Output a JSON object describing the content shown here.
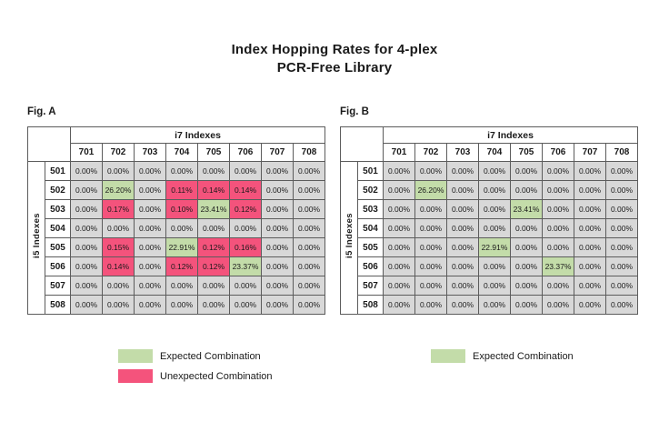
{
  "title": {
    "line1": "Index Hopping Rates for 4-plex",
    "line2": "PCR-Free Library"
  },
  "colors": {
    "expected": "#C3DCA9",
    "unexpected": "#F4537C",
    "neutral": "#D8D8D8",
    "header_bg": "#FFFFFF",
    "border": "#5C5C5C",
    "text": "#1A1A1A"
  },
  "chart_data": [
    {
      "type": "heatmap",
      "title": "Fig. A",
      "x_axis_header": "i7 Indexes",
      "y_axis_header": "i5 Indexes",
      "x_labels": [
        "701",
        "702",
        "703",
        "704",
        "705",
        "706",
        "707",
        "708"
      ],
      "y_labels": [
        "501",
        "502",
        "503",
        "504",
        "505",
        "506",
        "507",
        "508"
      ],
      "values": [
        [
          "0.00%",
          "0.00%",
          "0.00%",
          "0.00%",
          "0.00%",
          "0.00%",
          "0.00%",
          "0.00%"
        ],
        [
          "0.00%",
          "26.20%",
          "0.00%",
          "0.11%",
          "0.14%",
          "0.14%",
          "0.00%",
          "0.00%"
        ],
        [
          "0.00%",
          "0.17%",
          "0.00%",
          "0.10%",
          "23.41%",
          "0.12%",
          "0.00%",
          "0.00%"
        ],
        [
          "0.00%",
          "0.00%",
          "0.00%",
          "0.00%",
          "0.00%",
          "0.00%",
          "0.00%",
          "0.00%"
        ],
        [
          "0.00%",
          "0.15%",
          "0.00%",
          "22.91%",
          "0.12%",
          "0.16%",
          "0.00%",
          "0.00%"
        ],
        [
          "0.00%",
          "0.14%",
          "0.00%",
          "0.12%",
          "0.12%",
          "23.37%",
          "0.00%",
          "0.00%"
        ],
        [
          "0.00%",
          "0.00%",
          "0.00%",
          "0.00%",
          "0.00%",
          "0.00%",
          "0.00%",
          "0.00%"
        ],
        [
          "0.00%",
          "0.00%",
          "0.00%",
          "0.00%",
          "0.00%",
          "0.00%",
          "0.00%",
          "0.00%"
        ]
      ],
      "highlights": [
        [
          "-",
          "-",
          "-",
          "-",
          "-",
          "-",
          "-",
          "-"
        ],
        [
          "-",
          "E",
          "-",
          "U",
          "U",
          "U",
          "-",
          "-"
        ],
        [
          "-",
          "U",
          "-",
          "U",
          "E",
          "U",
          "-",
          "-"
        ],
        [
          "-",
          "-",
          "-",
          "-",
          "-",
          "-",
          "-",
          "-"
        ],
        [
          "-",
          "U",
          "-",
          "E",
          "U",
          "U",
          "-",
          "-"
        ],
        [
          "-",
          "U",
          "-",
          "U",
          "U",
          "E",
          "-",
          "-"
        ],
        [
          "-",
          "-",
          "-",
          "-",
          "-",
          "-",
          "-",
          "-"
        ],
        [
          "-",
          "-",
          "-",
          "-",
          "-",
          "-",
          "-",
          "-"
        ]
      ],
      "legend": [
        {
          "label": "Expected Combination",
          "type": "expected"
        },
        {
          "label": "Unexpected Combination",
          "type": "unexpected"
        }
      ]
    },
    {
      "type": "heatmap",
      "title": "Fig. B",
      "x_axis_header": "i7 Indexes",
      "y_axis_header": "i5 Indexes",
      "x_labels": [
        "701",
        "702",
        "703",
        "704",
        "705",
        "706",
        "707",
        "708"
      ],
      "y_labels": [
        "501",
        "502",
        "503",
        "504",
        "505",
        "506",
        "507",
        "508"
      ],
      "values": [
        [
          "0.00%",
          "0.00%",
          "0.00%",
          "0.00%",
          "0.00%",
          "0.00%",
          "0.00%",
          "0.00%"
        ],
        [
          "0.00%",
          "26.20%",
          "0.00%",
          "0.00%",
          "0.00%",
          "0.00%",
          "0.00%",
          "0.00%"
        ],
        [
          "0.00%",
          "0.00%",
          "0.00%",
          "0.00%",
          "23.41%",
          "0.00%",
          "0.00%",
          "0.00%"
        ],
        [
          "0.00%",
          "0.00%",
          "0.00%",
          "0.00%",
          "0.00%",
          "0.00%",
          "0.00%",
          "0.00%"
        ],
        [
          "0.00%",
          "0.00%",
          "0.00%",
          "22.91%",
          "0.00%",
          "0.00%",
          "0.00%",
          "0.00%"
        ],
        [
          "0.00%",
          "0.00%",
          "0.00%",
          "0.00%",
          "0.00%",
          "23.37%",
          "0.00%",
          "0.00%"
        ],
        [
          "0.00%",
          "0.00%",
          "0.00%",
          "0.00%",
          "0.00%",
          "0.00%",
          "0.00%",
          "0.00%"
        ],
        [
          "0.00%",
          "0.00%",
          "0.00%",
          "0.00%",
          "0.00%",
          "0.00%",
          "0.00%",
          "0.00%"
        ]
      ],
      "highlights": [
        [
          "-",
          "-",
          "-",
          "-",
          "-",
          "-",
          "-",
          "-"
        ],
        [
          "-",
          "E",
          "-",
          "-",
          "-",
          "-",
          "-",
          "-"
        ],
        [
          "-",
          "-",
          "-",
          "-",
          "E",
          "-",
          "-",
          "-"
        ],
        [
          "-",
          "-",
          "-",
          "-",
          "-",
          "-",
          "-",
          "-"
        ],
        [
          "-",
          "-",
          "-",
          "E",
          "-",
          "-",
          "-",
          "-"
        ],
        [
          "-",
          "-",
          "-",
          "-",
          "-",
          "E",
          "-",
          "-"
        ],
        [
          "-",
          "-",
          "-",
          "-",
          "-",
          "-",
          "-",
          "-"
        ],
        [
          "-",
          "-",
          "-",
          "-",
          "-",
          "-",
          "-",
          "-"
        ]
      ],
      "legend": [
        {
          "label": "Expected Combination",
          "type": "expected"
        }
      ]
    }
  ]
}
